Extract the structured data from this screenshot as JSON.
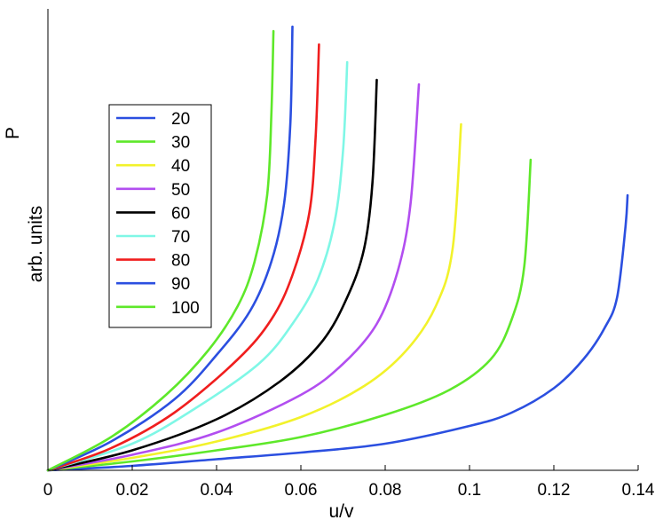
{
  "chart_data": {
    "type": "line",
    "xlabel": "u/v",
    "ylabel_top": "P",
    "ylabel_units": "arb. units",
    "xlim": [
      0,
      0.14
    ],
    "ylim": [
      0,
      1
    ],
    "x_ticks": [
      0,
      0.02,
      0.04,
      0.06,
      0.08,
      0.1,
      0.12,
      0.14
    ],
    "x_tick_labels": [
      "0",
      "0.02",
      "0.04",
      "0.06",
      "0.08",
      "0.1",
      "0.12",
      "0.14"
    ],
    "y_ticks_shown": false,
    "grid": false,
    "legend_position": "upper-left",
    "series": [
      {
        "name": "20",
        "color": "#2b4fe0",
        "x": [
          0,
          0.02,
          0.04,
          0.06,
          0.08,
          0.1,
          0.11,
          0.12,
          0.127,
          0.132,
          0.135,
          0.137,
          0.1375
        ],
        "y": [
          0,
          0.01,
          0.025,
          0.04,
          0.06,
          0.1,
          0.13,
          0.185,
          0.25,
          0.32,
          0.39,
          0.55,
          0.62
        ]
      },
      {
        "name": "30",
        "color": "#5ee82a",
        "x": [
          0,
          0.02,
          0.04,
          0.06,
          0.08,
          0.095,
          0.105,
          0.11,
          0.113,
          0.1145
        ],
        "y": [
          0,
          0.02,
          0.045,
          0.075,
          0.125,
          0.18,
          0.25,
          0.34,
          0.46,
          0.7
        ]
      },
      {
        "name": "40",
        "color": "#f2f22b",
        "x": [
          0,
          0.02,
          0.04,
          0.06,
          0.075,
          0.085,
          0.092,
          0.096,
          0.098
        ],
        "y": [
          0,
          0.028,
          0.065,
          0.12,
          0.19,
          0.27,
          0.37,
          0.5,
          0.78
        ]
      },
      {
        "name": "50",
        "color": "#b24ef0",
        "x": [
          0,
          0.02,
          0.04,
          0.06,
          0.07,
          0.078,
          0.083,
          0.086,
          0.088
        ],
        "y": [
          0,
          0.035,
          0.085,
          0.17,
          0.24,
          0.33,
          0.45,
          0.6,
          0.87
        ]
      },
      {
        "name": "60",
        "color": "#000000",
        "x": [
          0,
          0.02,
          0.04,
          0.055,
          0.065,
          0.071,
          0.075,
          0.077,
          0.078
        ],
        "y": [
          0,
          0.045,
          0.115,
          0.2,
          0.29,
          0.39,
          0.5,
          0.65,
          0.88
        ]
      },
      {
        "name": "70",
        "color": "#7ff7e6",
        "x": [
          0,
          0.02,
          0.035,
          0.05,
          0.058,
          0.064,
          0.068,
          0.07,
          0.071
        ],
        "y": [
          0,
          0.06,
          0.14,
          0.24,
          0.33,
          0.43,
          0.56,
          0.72,
          0.92
        ]
      },
      {
        "name": "80",
        "color": "#f01e1e",
        "x": [
          0,
          0.015,
          0.03,
          0.045,
          0.053,
          0.058,
          0.062,
          0.0635,
          0.0643
        ],
        "y": [
          0,
          0.05,
          0.13,
          0.25,
          0.34,
          0.44,
          0.58,
          0.75,
          0.96
        ]
      },
      {
        "name": "90",
        "color": "#2b4fe0",
        "x": [
          0,
          0.015,
          0.03,
          0.04,
          0.048,
          0.053,
          0.056,
          0.0575,
          0.058
        ],
        "y": [
          0,
          0.065,
          0.16,
          0.26,
          0.36,
          0.47,
          0.6,
          0.78,
          1.0
        ]
      },
      {
        "name": "100",
        "color": "#5ee82a",
        "x": [
          0,
          0.015,
          0.028,
          0.038,
          0.045,
          0.049,
          0.052,
          0.053,
          0.0535
        ],
        "y": [
          0,
          0.075,
          0.17,
          0.27,
          0.37,
          0.47,
          0.62,
          0.8,
          0.99
        ]
      }
    ]
  }
}
